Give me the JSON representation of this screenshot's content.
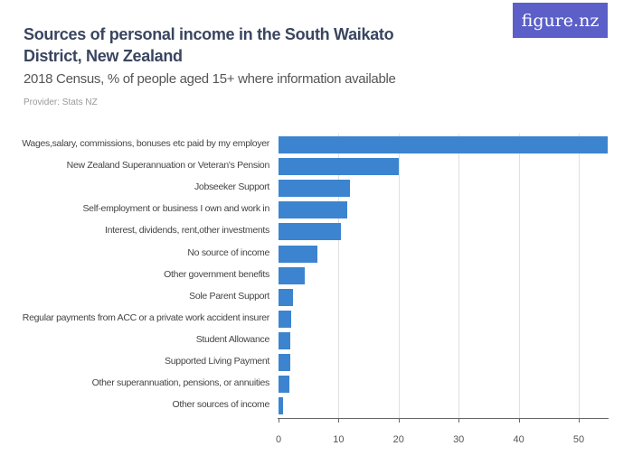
{
  "header": {
    "title": "Sources of personal income in the South Waikato District, New Zealand",
    "subtitle": "2018 Census, % of people aged 15+ where information available",
    "provider": "Provider: Stats NZ",
    "logo": "figure.nz"
  },
  "colors": {
    "bar": "#3c84cf",
    "logo_bg": "#5b5fc7",
    "title": "#3a4560"
  },
  "chart_data": {
    "type": "bar",
    "orientation": "horizontal",
    "title": "Sources of personal income in the South Waikato District, New Zealand",
    "subtitle": "2018 Census, % of people aged 15+ where information available",
    "xlabel": "",
    "ylabel": "",
    "xlim": [
      0,
      55
    ],
    "xticks": [
      0,
      10,
      20,
      30,
      40,
      50
    ],
    "grid": true,
    "categories": [
      "Wages,salary, commissions, bonuses etc paid by my employer",
      "New Zealand Superannuation or Veteran's Pension",
      "Jobseeker Support",
      "Self-employment or business I own and work in",
      "Interest, dividends, rent,other investments",
      "No source of income",
      "Other government benefits",
      "Sole Parent Support",
      "Regular payments from ACC or a private work accident insurer",
      "Student Allowance",
      "Supported Living Payment",
      "Other superannuation, pensions, or annuities",
      "Other sources of income"
    ],
    "values": [
      54.8,
      20.0,
      11.9,
      11.4,
      10.4,
      6.5,
      4.4,
      2.4,
      2.1,
      2.0,
      1.9,
      1.8,
      0.8
    ]
  }
}
